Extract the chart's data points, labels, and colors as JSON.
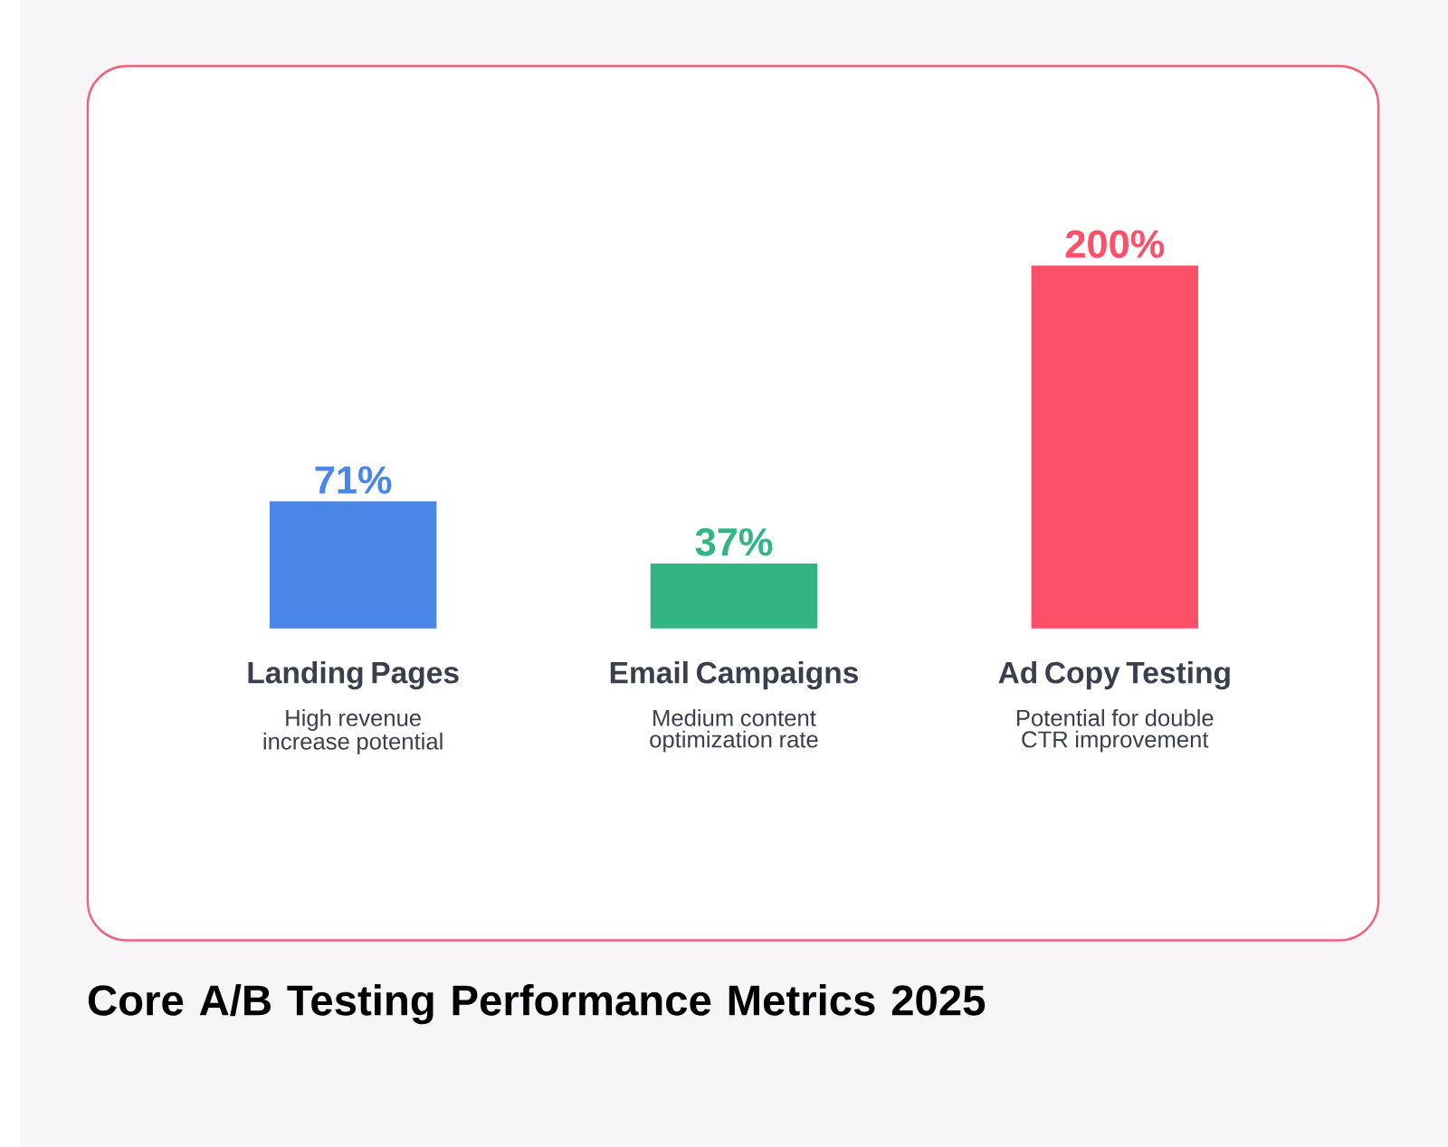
{
  "chart_data": {
    "type": "bar",
    "title": "Core A/B Testing Performance Metrics 2025",
    "categories": [
      "Landing Pages",
      "Email Campaigns",
      "Ad Copy Testing"
    ],
    "values": [
      71,
      37,
      200
    ],
    "colors": [
      "#4a86e8",
      "#33b483",
      "#fb5068"
    ],
    "value_labels": [
      "71%",
      "37%",
      "200%"
    ],
    "annotations": [
      "High revenue increase potential",
      "Medium content optimization rate",
      "Potential for double CTR improvement"
    ]
  }
}
